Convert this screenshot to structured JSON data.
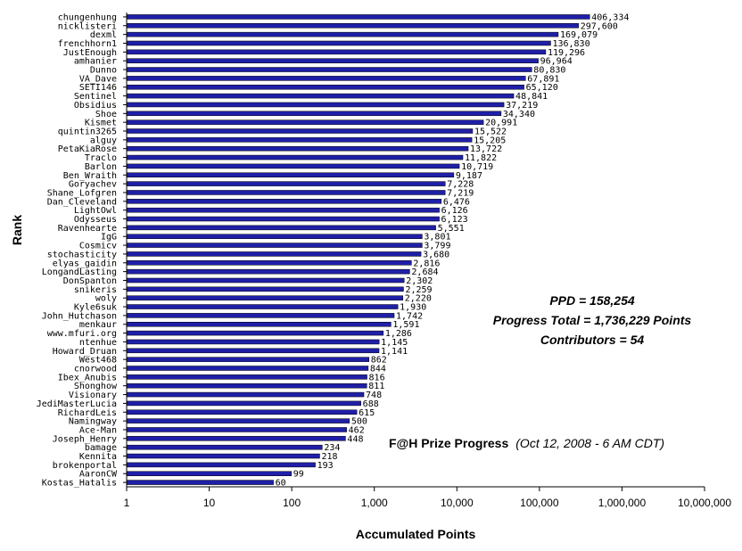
{
  "chart_data": {
    "type": "bar",
    "orientation": "horizontal",
    "xscale": "log",
    "xlim": [
      1,
      10000000
    ],
    "xticks": [
      "1",
      "10",
      "100",
      "1,000",
      "10,000",
      "100,000",
      "1,000,000",
      "10,000,000"
    ],
    "xlabel": "Accumulated Points",
    "ylabel": "Rank",
    "grid": false,
    "bar_color": "#1f1fa8",
    "categories": [
      "chungenhung",
      "nicklisteri",
      "dexml",
      "frenchhorn1",
      "JustEnough",
      "amhanier",
      "Dunno",
      "VA_Dave",
      "SETI146",
      "Sentinel",
      "Obsidius",
      "Shoe",
      "Kismet",
      "quintin3265",
      "alguy",
      "PetaKiaRose",
      "Traclo",
      "Barlon",
      "Ben_Wraith",
      "Goryachev",
      "Shane_Lofgren",
      "Dan_Cleveland",
      "LightOwl",
      "Odysseus",
      "Ravenhearte",
      "IgG",
      "Cosmicv",
      "stochasticity",
      "elyas_gaidin",
      "LongandLasting",
      "DonSpanton",
      "snikeris",
      "woly",
      "Kyle6suk",
      "John_Hutchason",
      "menkaur",
      "www.mfuri.org",
      "ntenhue",
      "Howard_Druan",
      "West468",
      "cnorwood",
      "Ibex_Anubis",
      "Shonghow",
      "Visionary",
      "JediMasterLucia",
      "RichardLeis",
      "Namingway",
      "Ace-Man",
      "Joseph_Henry",
      "bamage",
      "Kennita",
      "brokenportal",
      "AaronCW",
      "Kostas_Hatalis"
    ],
    "values": [
      406334,
      297600,
      169079,
      136830,
      119296,
      96964,
      80830,
      67891,
      65120,
      48841,
      37219,
      34340,
      20991,
      15522,
      15205,
      13722,
      11822,
      10719,
      9187,
      7228,
      7219,
      6476,
      6126,
      6123,
      5551,
      3801,
      3799,
      3680,
      2816,
      2684,
      2302,
      2259,
      2220,
      1930,
      1742,
      1591,
      1286,
      1145,
      1141,
      862,
      844,
      816,
      811,
      748,
      688,
      615,
      500,
      462,
      448,
      234,
      218,
      193,
      99,
      60
    ],
    "value_labels": [
      "406,334",
      "297,600",
      "169,079",
      "136,830",
      "119,296",
      "96,964",
      "80,830",
      "67,891",
      "65,120",
      "48,841",
      "37,219",
      "34,340",
      "20,991",
      "15,522",
      "15,205",
      "13,722",
      "11,822",
      "10,719",
      "9,187",
      "7,228",
      "7,219",
      "6,476",
      "6,126",
      "6,123",
      "5,551",
      "3,801",
      "3,799",
      "3,680",
      "2,816",
      "2,684",
      "2,302",
      "2,259",
      "2,220",
      "1,930",
      "1,742",
      "1,591",
      "1,286",
      "1,145",
      "1,141",
      "862",
      "844",
      "816",
      "811",
      "748",
      "688",
      "615",
      "500",
      "462",
      "448",
      "234",
      "218",
      "193",
      "99",
      "60"
    ],
    "annotations": {
      "ppd": "PPD = 158,254",
      "progress_total": "Progress Total = 1,736,229 Points",
      "contributors": "Contributors = 54",
      "prize_title": "F@H Prize Progress",
      "prize_date": "(Oct 12, 2008 - 6 AM CDT)"
    }
  }
}
